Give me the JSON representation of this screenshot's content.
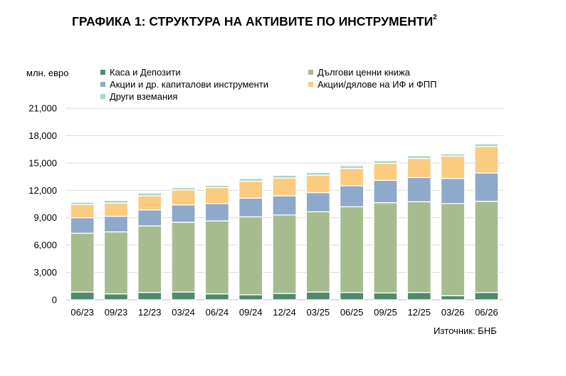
{
  "title": "ГРАФИКА 1: СТРУКТУРА НА АКТИВИТЕ ПО ИНСТРУМЕНТИ",
  "title_superscript": "2",
  "source": "Източник: БНБ",
  "colors": {
    "cash": "#4f8a6b",
    "debt": "#a6bc8e",
    "equity": "#8ea9c9",
    "funds": "#fbcb80",
    "other": "#a8d7c6"
  },
  "chart_data": {
    "type": "bar",
    "stacked": true,
    "ylabel": "млн. евро",
    "ylim": [
      0,
      21000
    ],
    "yticks": [
      "0",
      "3,000",
      "6,000",
      "9,000",
      "12,000",
      "15,000",
      "18,000",
      "21,000"
    ],
    "ytick_values": [
      0,
      3000,
      6000,
      9000,
      12000,
      15000,
      18000,
      21000
    ],
    "grid": true,
    "legend_position": "top",
    "categories": [
      "06/23",
      "09/23",
      "12/23",
      "03/24",
      "06/24",
      "09/24",
      "12/24",
      "03/25",
      "06/25",
      "09/25",
      "12/25",
      "03/26",
      "06/26"
    ],
    "series": [
      {
        "name": "Каса и Депозити",
        "key": "cash",
        "values": [
          850,
          650,
          800,
          850,
          650,
          550,
          700,
          850,
          800,
          750,
          800,
          450,
          800
        ]
      },
      {
        "name": "Дългови ценни книжа",
        "key": "debt",
        "values": [
          6450,
          6800,
          7300,
          7650,
          8000,
          8550,
          8600,
          8800,
          9400,
          9900,
          9950,
          10100,
          10000
        ]
      },
      {
        "name": "Акции и др. капиталови инструменти",
        "key": "equity",
        "values": [
          1700,
          1700,
          1750,
          1900,
          1900,
          2050,
          2100,
          2100,
          2300,
          2450,
          2650,
          2750,
          3100
        ]
      },
      {
        "name": "Акции/дялове на ИФ и ФПП",
        "key": "funds",
        "values": [
          1450,
          1450,
          1550,
          1650,
          1750,
          1850,
          1950,
          1900,
          1900,
          1850,
          2100,
          2450,
          2900
        ]
      },
      {
        "name": "Други вземания",
        "key": "other",
        "values": [
          250,
          300,
          300,
          250,
          250,
          300,
          300,
          300,
          300,
          300,
          300,
          250,
          300
        ]
      }
    ]
  }
}
